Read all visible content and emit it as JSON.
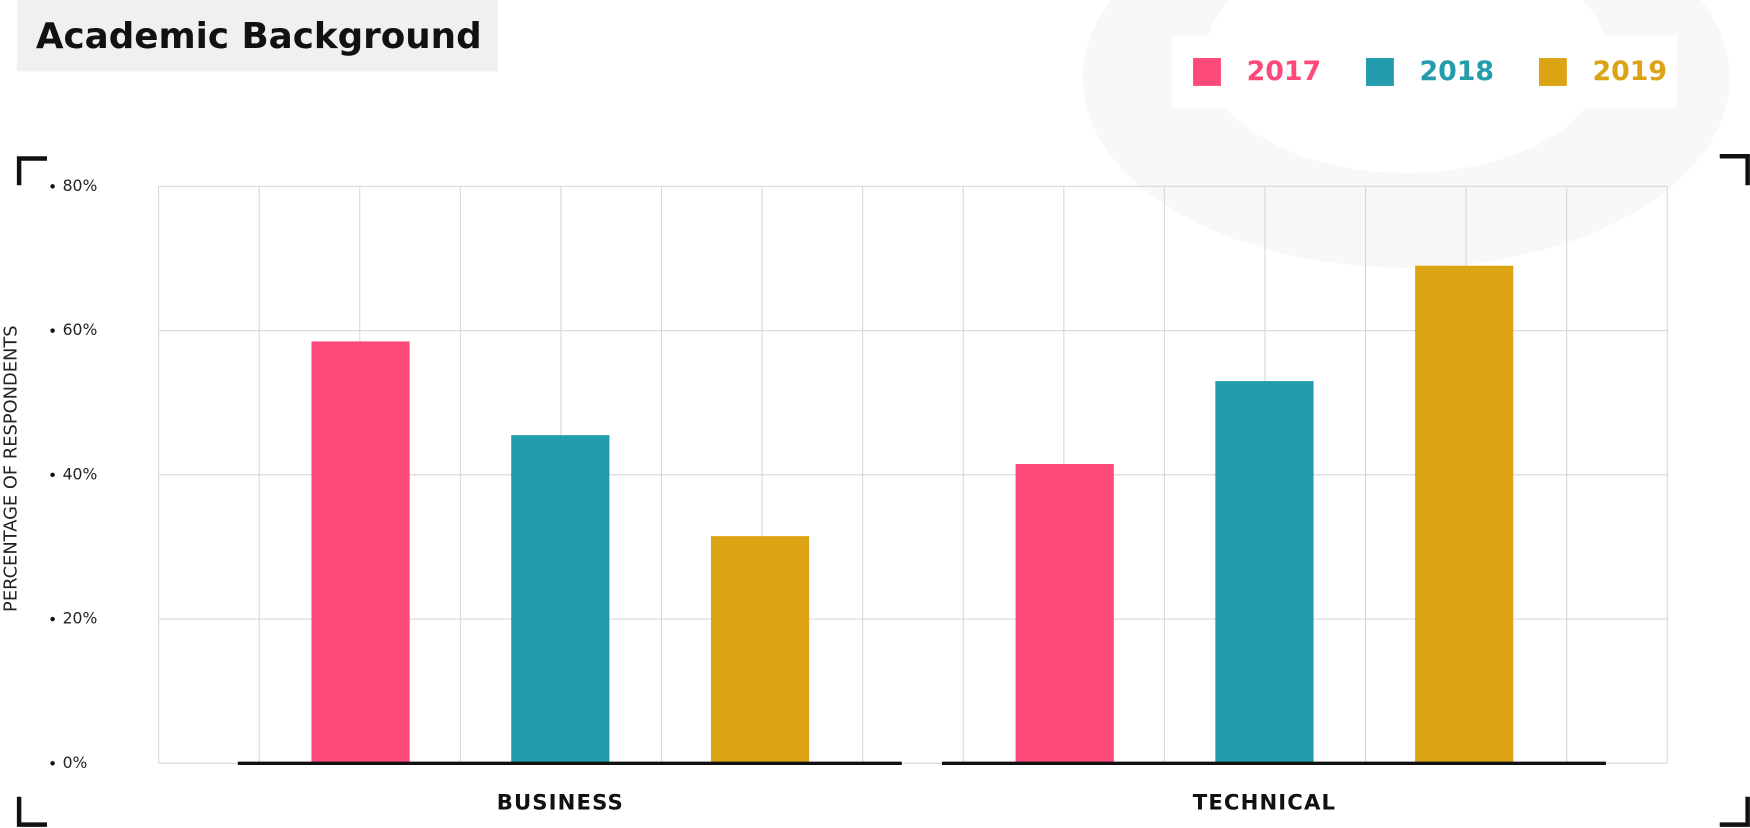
{
  "chart_data": {
    "type": "bar",
    "title": "Academic Background",
    "y_label": "PERCENTAGE OF RESPONDENTS",
    "categories": [
      "BUSINESS",
      "TECHNICAL"
    ],
    "series": [
      {
        "name": "2017",
        "color": "#fe4a7a",
        "values": [
          58.5,
          41.5
        ]
      },
      {
        "name": "2018",
        "color": "#239cad",
        "values": [
          45.5,
          53
        ]
      },
      {
        "name": "2019",
        "color": "#dca315",
        "values": [
          31.5,
          69
        ]
      }
    ],
    "ylim": [
      0,
      80
    ],
    "yticks": [
      {
        "value": 0,
        "label": "0%"
      },
      {
        "value": 20,
        "label": "20%"
      },
      {
        "value": 40,
        "label": "40%"
      },
      {
        "value": 60,
        "label": "60%"
      },
      {
        "value": 80,
        "label": "80%"
      }
    ],
    "grid": true
  }
}
